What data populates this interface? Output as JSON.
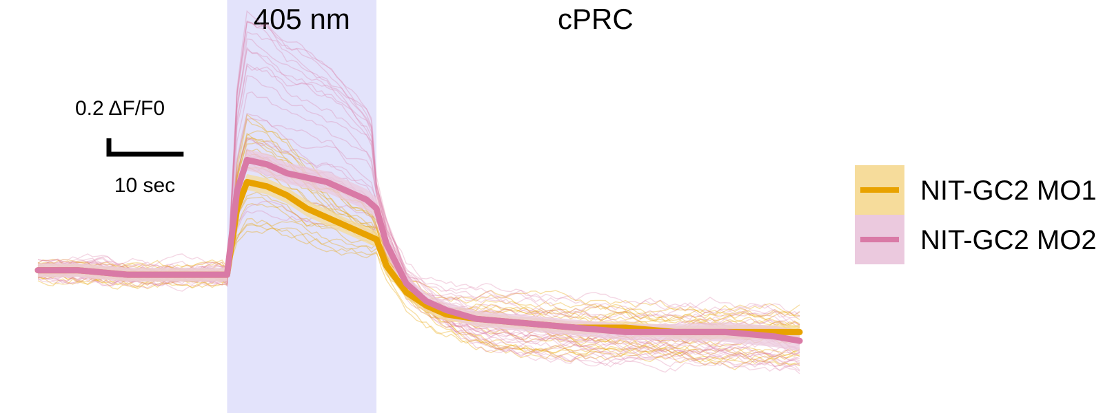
{
  "chart_data": {
    "type": "line",
    "title": "",
    "annotations": {
      "stimulus_label": "405 nm",
      "region_label": "cPRC",
      "stimulus_window_sec": [
        0,
        15
      ],
      "stimulus_color": "#e3e3fb"
    },
    "scale_bar": {
      "y_label": "0.2 ΔF/F0",
      "y_value": 0.2,
      "x_label": "10 sec",
      "x_value": 10
    },
    "x": [
      -19,
      -15,
      -10,
      -5,
      0,
      1,
      2,
      4,
      6,
      8,
      10,
      12,
      14,
      15,
      16,
      18,
      20,
      22,
      25,
      30,
      35,
      40,
      45,
      50,
      55,
      57.5
    ],
    "x_unit": "sec",
    "y_unit": "ΔF/F0",
    "series": [
      {
        "name": "NIT-GC2 MO1",
        "color": "#e8a200",
        "band_color": "#f6dc9b",
        "values": [
          0.0,
          0.0,
          -0.01,
          -0.01,
          -0.01,
          0.14,
          0.2,
          0.19,
          0.17,
          0.14,
          0.12,
          0.1,
          0.08,
          0.07,
          0.01,
          -0.05,
          -0.08,
          -0.1,
          -0.11,
          -0.12,
          -0.13,
          -0.13,
          -0.14,
          -0.14,
          -0.14,
          -0.14
        ],
        "sem": [
          0.014,
          0.014,
          0.014,
          0.014,
          0.014,
          0.018,
          0.018,
          0.018,
          0.018,
          0.018,
          0.018,
          0.018,
          0.018,
          0.018,
          0.016,
          0.014,
          0.014,
          0.014,
          0.014,
          0.014,
          0.014,
          0.014,
          0.014,
          0.016,
          0.016,
          0.016
        ]
      },
      {
        "name": "NIT-GC2 MO2",
        "color": "#d97aa6",
        "band_color": "#ebc9de",
        "values": [
          0.0,
          0.0,
          -0.01,
          -0.01,
          -0.01,
          0.18,
          0.25,
          0.24,
          0.22,
          0.21,
          0.2,
          0.18,
          0.16,
          0.14,
          0.06,
          -0.03,
          -0.07,
          -0.09,
          -0.11,
          -0.12,
          -0.13,
          -0.14,
          -0.14,
          -0.14,
          -0.15,
          -0.16
        ],
        "sem": [
          0.016,
          0.016,
          0.016,
          0.016,
          0.016,
          0.024,
          0.024,
          0.024,
          0.024,
          0.024,
          0.024,
          0.024,
          0.024,
          0.024,
          0.022,
          0.018,
          0.018,
          0.018,
          0.018,
          0.018,
          0.018,
          0.018,
          0.018,
          0.022,
          0.024,
          0.024
        ]
      }
    ],
    "xlim": [
      -19,
      57.5
    ],
    "ylim": [
      -0.3,
      0.55
    ],
    "grid": false,
    "legend_position": "right"
  }
}
